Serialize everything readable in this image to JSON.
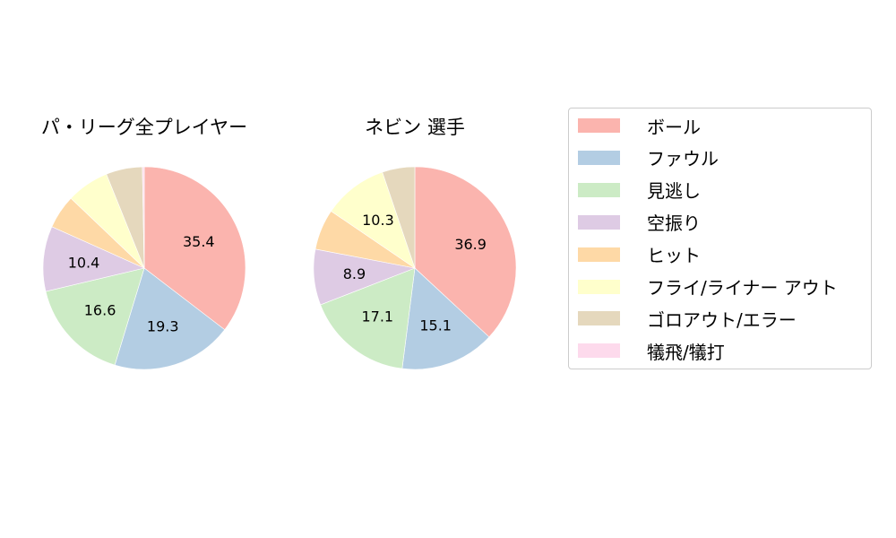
{
  "chart_data": [
    {
      "type": "pie",
      "title": "パ・リーグ全プレイヤー",
      "categories": [
        "ボール",
        "ファウル",
        "見逃し",
        "空振り",
        "ヒット",
        "フライ/ライナー アウト",
        "ゴロアウト/エラー",
        "犠飛/犠打"
      ],
      "values": [
        35.4,
        19.3,
        16.6,
        10.4,
        5.4,
        6.8,
        5.8,
        0.3
      ],
      "labels_shown": [
        "35.4",
        "19.3",
        "16.6",
        "10.4",
        "",
        "",
        "",
        ""
      ],
      "start_angle": 90,
      "direction": "clockwise"
    },
    {
      "type": "pie",
      "title": "ネビン  選手",
      "categories": [
        "ボール",
        "ファウル",
        "見逃し",
        "空振り",
        "ヒット",
        "フライ/ライナー アウト",
        "ゴロアウト/エラー",
        "犠飛/犠打"
      ],
      "values": [
        36.9,
        15.1,
        17.1,
        8.9,
        6.5,
        10.3,
        5.2,
        0.0
      ],
      "labels_shown": [
        "36.9",
        "15.1",
        "17.1",
        "8.9",
        "",
        "10.3",
        "",
        ""
      ],
      "start_angle": 90,
      "direction": "clockwise"
    }
  ],
  "legend": {
    "items": [
      {
        "label": "ボール",
        "color": "#fbb4ae"
      },
      {
        "label": "ファウル",
        "color": "#b3cde3"
      },
      {
        "label": "見逃し",
        "color": "#ccebc5"
      },
      {
        "label": "空振り",
        "color": "#decbe4"
      },
      {
        "label": "ヒット",
        "color": "#fed9a6"
      },
      {
        "label": "フライ/ライナー アウト",
        "color": "#ffffcc"
      },
      {
        "label": "ゴロアウト/エラー",
        "color": "#e5d8bd"
      },
      {
        "label": "犠飛/犠打",
        "color": "#fddaec"
      }
    ]
  },
  "titles": {
    "left": "パ・リーグ全プレイヤー",
    "right": "ネビン  選手"
  }
}
